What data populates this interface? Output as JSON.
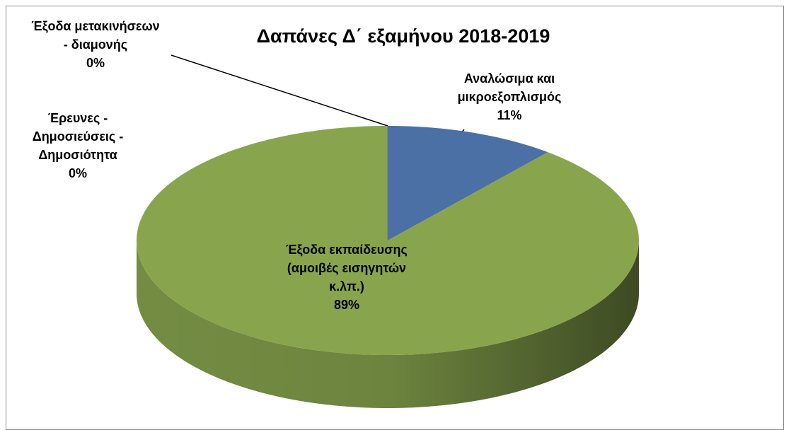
{
  "chart_data": {
    "type": "pie",
    "title": "Δαπάνες Δ΄ εξαμήνου 2018-2019",
    "categories": [
      "Αναλώσιμα και μικροεξοπλισμός",
      "Έξοδα εκπαίδευσης (αμοιβές εισηγητών κ.λπ.)",
      "Έξοδα μετακινήσεων - διαμονής",
      "Έρευνες - Δημοσιεύσεις - Δημοσιότητα"
    ],
    "values": [
      11,
      89,
      0,
      0
    ],
    "value_labels": [
      "11%",
      "89%",
      "0%",
      "0%"
    ],
    "colors": [
      "#4a70a6",
      "#88a54e",
      "#c0504d",
      "#8064a2"
    ]
  }
}
